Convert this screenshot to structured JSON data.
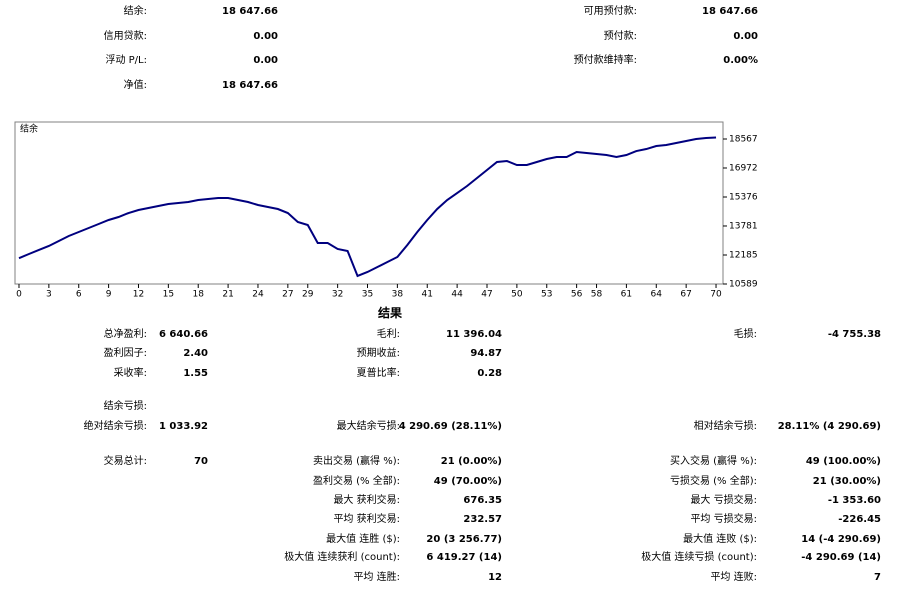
{
  "summary": {
    "rows": [
      {
        "left": [
          "结余:",
          "18 647.66"
        ],
        "right": [
          "可用预付款:",
          "18 647.66"
        ]
      },
      {
        "left": [
          "信用贷款:",
          "0.00"
        ],
        "right": [
          "预付款:",
          "0.00"
        ]
      },
      {
        "left": [
          "浮动 P/L:",
          "0.00"
        ],
        "right": [
          "预付款维持率:",
          "0.00%"
        ]
      },
      {
        "left": [
          "净值:",
          "18 647.66"
        ]
      }
    ]
  },
  "chart_data": {
    "type": "line",
    "title": "结余",
    "color": "#00007f",
    "x": [
      0,
      1,
      2,
      3,
      4,
      5,
      6,
      7,
      8,
      9,
      10,
      11,
      12,
      13,
      14,
      15,
      16,
      17,
      18,
      19,
      20,
      21,
      22,
      23,
      24,
      25,
      26,
      27,
      28,
      29,
      30,
      31,
      32,
      33,
      34,
      35,
      36,
      37,
      38,
      39,
      40,
      41,
      42,
      43,
      44,
      45,
      46,
      47,
      48,
      49,
      50,
      51,
      52,
      53,
      54,
      55,
      56,
      57,
      58,
      59,
      60,
      61,
      62,
      63,
      64,
      65,
      66,
      67,
      68,
      69,
      70
    ],
    "values": [
      12007,
      12240,
      12460,
      12680,
      12955,
      13230,
      13450,
      13670,
      13890,
      14110,
      14275,
      14495,
      14660,
      14770,
      14880,
      14990,
      15045,
      15100,
      15210,
      15265,
      15320,
      15320,
      15210,
      15100,
      14935,
      14825,
      14715,
      14495,
      14000,
      13835,
      12845,
      12845,
      12515,
      12405,
      11030,
      11250,
      11525,
      11800,
      12075,
      12735,
      13450,
      14110,
      14715,
      15210,
      15595,
      15980,
      16420,
      16860,
      17300,
      17355,
      17135,
      17135,
      17300,
      17465,
      17575,
      17575,
      17850,
      17795,
      17740,
      17685,
      17575,
      17685,
      17905,
      18015,
      18180,
      18235,
      18345,
      18455,
      18565,
      18620,
      18647.66
    ],
    "xlim": [
      -0.4,
      70.7
    ],
    "ylim": [
      10589,
      19502
    ],
    "xticks": [
      0,
      3,
      6,
      9,
      12,
      15,
      18,
      21,
      24,
      27,
      29,
      32,
      35,
      38,
      41,
      44,
      47,
      50,
      53,
      56,
      58,
      61,
      64,
      67,
      70
    ],
    "yticks": [
      10589,
      12185,
      13781,
      15376,
      16972,
      18567
    ]
  },
  "results": {
    "title": "结果",
    "rows": [
      {
        "c1": [
          "总净盈利:",
          "6 640.66"
        ],
        "c2": [
          "毛利:",
          "11 396.04"
        ],
        "c3": [
          "毛损:",
          "-4 755.38"
        ]
      },
      {
        "c1": [
          "盈利因子:",
          "2.40"
        ],
        "c2": [
          "预期收益:",
          "94.87"
        ]
      },
      {
        "c1": [
          "采收率:",
          "1.55"
        ],
        "c2": [
          "夏普比率:",
          "0.28"
        ]
      },
      {
        "c1": [
          "结余亏损:"
        ]
      },
      {
        "c1": [
          "绝对结余亏损:",
          "1 033.92"
        ],
        "c2": [
          "最大结余亏损:",
          "4 290.69 (28.11%)"
        ],
        "c3": [
          "相对结余亏损:",
          "28.11% (4 290.69)"
        ]
      },
      {
        "c1": [
          "交易总计:",
          "70"
        ],
        "c2": [
          "卖出交易 (赢得 %):",
          "21 (0.00%)"
        ],
        "c3": [
          "买入交易 (赢得 %):",
          "49 (100.00%)"
        ]
      },
      {
        "c2": [
          "盈利交易 (% 全部):",
          "49 (70.00%)"
        ],
        "c3": [
          "亏损交易 (% 全部):",
          "21 (30.00%)"
        ]
      },
      {
        "c2": [
          "最大 获利交易:",
          "676.35"
        ],
        "c3": [
          "最大 亏损交易:",
          "-1 353.60"
        ]
      },
      {
        "c2": [
          "平均 获利交易:",
          "232.57"
        ],
        "c3": [
          "平均 亏损交易:",
          "-226.45"
        ]
      },
      {
        "c2": [
          "最大值 连胜 ($):",
          "20 (3 256.77)"
        ],
        "c3": [
          "最大值 连败 ($):",
          "14 (-4 290.69)"
        ]
      },
      {
        "c2": [
          "极大值 连续获利 (count):",
          "6 419.27 (14)"
        ],
        "c3": [
          "极大值 连续亏损 (count):",
          "-4 290.69 (14)"
        ]
      },
      {
        "c2": [
          "平均 连胜:",
          "12"
        ],
        "c3": [
          "平均 连败:",
          "7"
        ]
      }
    ]
  }
}
